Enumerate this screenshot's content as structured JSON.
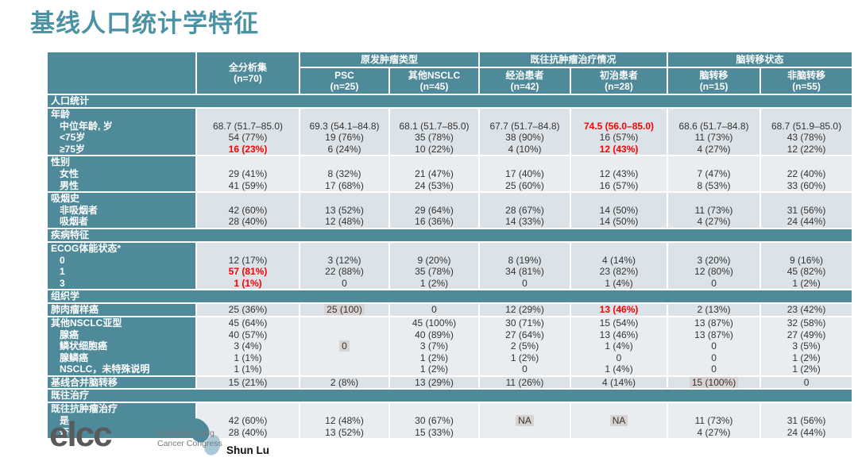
{
  "title": "基线人口统计学特征",
  "colors": {
    "accent_teal": "#4e8a99",
    "title_teal": "#4b92a5",
    "shade_dark": "#dce3e8",
    "shade_light": "#e9edf0",
    "highlight_red": "#fe0000",
    "cell_highlight": "#d8d3d1"
  },
  "table": {
    "col_groups": [
      {
        "label": "原发肿瘤类型",
        "span": 2
      },
      {
        "label": "既往抗肿瘤治疗情况",
        "span": 2
      },
      {
        "label": "脑转移状态",
        "span": 2
      }
    ],
    "columns": [
      {
        "label": "全分析集",
        "n": "(n=70)"
      },
      {
        "label": "PSC",
        "n": "(n=25)"
      },
      {
        "label": "其他NSCLC",
        "n": "(n=45)"
      },
      {
        "label": "经治患者",
        "n": "(n=42)"
      },
      {
        "label": "初治患者",
        "n": "(n=28)"
      },
      {
        "label": "脑转移",
        "n": "(n=15)"
      },
      {
        "label": "非脑转移",
        "n": "(n=55)"
      }
    ],
    "rows": [
      {
        "t": "sec",
        "label": "人口统计"
      },
      {
        "t": "row",
        "lvl": 0,
        "shade": "a",
        "label": "年龄",
        "cells": [
          "",
          "",
          "",
          "",
          "",
          "",
          ""
        ]
      },
      {
        "t": "row",
        "lvl": 1,
        "shade": "a",
        "label": "中位年龄, 岁",
        "cells": [
          "68.7 (51.7–85.0)",
          "69.3 (54.1–84.8)",
          "68.1 (51.7–85.0)",
          "67.7 (51.7–84.8)",
          "74.5 (56.0–85.0)",
          "68.6 (51.7–84.8)",
          "68.7 (51.9–85.0)"
        ],
        "red": [
          4
        ]
      },
      {
        "t": "row",
        "lvl": 1,
        "shade": "a",
        "label": "<75岁",
        "cells": [
          "54 (77%)",
          "19 (76%)",
          "35 (78%)",
          "38 (90%)",
          "16 (57%)",
          "11 (73%)",
          "43 (78%)"
        ]
      },
      {
        "t": "row",
        "lvl": 1,
        "shade": "a",
        "label": "≥75岁",
        "cells": [
          "16 (23%)",
          "6 (24%)",
          "10 (22%)",
          "4 (10%)",
          "12 (43%)",
          "4 (27%)",
          "12 (22%)"
        ],
        "red": [
          0,
          4
        ]
      },
      {
        "t": "row",
        "lvl": 0,
        "shade": "b",
        "label": "性别",
        "cells": [
          "",
          "",
          "",
          "",
          "",
          "",
          ""
        ]
      },
      {
        "t": "row",
        "lvl": 1,
        "shade": "b",
        "label": "女性",
        "cells": [
          "29 (41%)",
          "8 (32%)",
          "21 (47%)",
          "17 (40%)",
          "12 (43%)",
          "7 (47%)",
          "22 (40%)"
        ]
      },
      {
        "t": "row",
        "lvl": 1,
        "shade": "b",
        "label": "男性",
        "cells": [
          "41 (59%)",
          "17 (68%)",
          "24 (53%)",
          "25 (60%)",
          "16 (57%)",
          "8 (53%)",
          "33 (60%)"
        ]
      },
      {
        "t": "row",
        "lvl": 0,
        "shade": "a",
        "label": "吸烟史",
        "cells": [
          "",
          "",
          "",
          "",
          "",
          "",
          ""
        ]
      },
      {
        "t": "row",
        "lvl": 1,
        "shade": "a",
        "label": "非吸烟者",
        "cells": [
          "42 (60%)",
          "13 (52%)",
          "29 (64%)",
          "28 (67%)",
          "14 (50%)",
          "11 (73%)",
          "31 (56%)"
        ]
      },
      {
        "t": "row",
        "lvl": 1,
        "shade": "a",
        "label": "吸烟者",
        "cells": [
          "28 (40%)",
          "12 (48%)",
          "16 (36%)",
          "14 (33%)",
          "14 (50%)",
          "4 (27%)",
          "24 (44%)"
        ]
      },
      {
        "t": "sec",
        "label": "疾病特征"
      },
      {
        "t": "row",
        "lvl": 0,
        "shade": "a",
        "label": "ECOG体能状态*",
        "cells": [
          "",
          "",
          "",
          "",
          "",
          "",
          ""
        ]
      },
      {
        "t": "row",
        "lvl": 1,
        "shade": "a",
        "label": "0",
        "cells": [
          "12 (17%)",
          "3 (12%)",
          "9 (20%)",
          "8 (19%)",
          "4 (14%)",
          "3 (20%)",
          "9 (16%)"
        ]
      },
      {
        "t": "row",
        "lvl": 1,
        "shade": "a",
        "label": "1",
        "cells": [
          "57 (81%)",
          "22 (88%)",
          "35 (78%)",
          "34 (81%)",
          "23 (82%)",
          "12 (80%)",
          "45 (82%)"
        ],
        "red": [
          0
        ]
      },
      {
        "t": "row",
        "lvl": 1,
        "shade": "a",
        "label": "3",
        "cells": [
          "1 (1%)",
          "0",
          "1 (2%)",
          "0",
          "1 (4%)",
          "0",
          "1 (2%)"
        ],
        "red": [
          0
        ]
      },
      {
        "t": "sec",
        "label": "组织学"
      },
      {
        "t": "row",
        "lvl": 0,
        "shade": "a",
        "label": "肺肉瘤样癌",
        "cells": [
          "25 (36%)",
          "25 (100)",
          "0",
          "12 (29%)",
          "13 (46%)",
          "2 (13%)",
          "23 (42%)"
        ],
        "red": [
          4
        ],
        "hl": [
          1
        ]
      },
      {
        "t": "row",
        "lvl": 0,
        "shade": "b",
        "label": "其他NSCLC亚型",
        "cells": [
          "45 (64%)",
          "",
          "45 (100%)",
          "30 (71%)",
          "15 (54%)",
          "13 (87%)",
          "32 (58%)"
        ]
      },
      {
        "t": "row",
        "lvl": 1,
        "shade": "b",
        "label": "腺癌",
        "cells": [
          "40 (57%)",
          "",
          "40 (89%)",
          "27 (64%)",
          "13 (46%)",
          "13 (87%)",
          "27 (49%)"
        ]
      },
      {
        "t": "row",
        "lvl": 1,
        "shade": "b",
        "label": "鳞状细胞癌",
        "cells": [
          "3 (4%)",
          "0",
          "3 (7%)",
          "2 (5%)",
          "1 (4%)",
          "0",
          "3 (5%)"
        ],
        "hl": [
          1
        ]
      },
      {
        "t": "row",
        "lvl": 1,
        "shade": "b",
        "label": "腺鳞癌",
        "cells": [
          "1 (1%)",
          "",
          "1 (2%)",
          "1 (2%)",
          "0",
          "0",
          "1 (2%)"
        ]
      },
      {
        "t": "row",
        "lvl": 1,
        "shade": "b",
        "label": "NSCLC，未特殊说明",
        "cells": [
          "1 (1%)",
          "",
          "1 (2%)",
          "0",
          "1 (4%)",
          "0",
          "1 (2%)"
        ]
      },
      {
        "t": "row",
        "lvl": 0,
        "shade": "a",
        "label": "基线合并脑转移",
        "cells": [
          "15 (21%)",
          "2 (8%)",
          "13 (29%)",
          "11 (26%)",
          "4 (14%)",
          "15 (100%)",
          "0"
        ],
        "hl": [
          5
        ]
      },
      {
        "t": "sec",
        "label": "既往治疗"
      },
      {
        "t": "row",
        "lvl": 0,
        "shade": "b",
        "label": "既往抗肿瘤治疗",
        "cells": [
          "",
          "",
          "",
          "",
          "",
          "",
          ""
        ]
      },
      {
        "t": "row",
        "lvl": 1,
        "shade": "b",
        "label": "是",
        "cells": [
          "42 (60%)",
          "12 (48%)",
          "30 (67%)",
          "NA",
          "NA",
          "11 (73%)",
          "31 (56%)"
        ],
        "hl": [
          3,
          4
        ]
      },
      {
        "t": "row",
        "lvl": 1,
        "shade": "b",
        "label": "否",
        "cells": [
          "28 (40%)",
          "13 (52%)",
          "15 (33%)",
          "",
          "",
          "4 (27%)",
          "24 (44%)"
        ]
      }
    ]
  },
  "footer": {
    "logo_text": "elcc",
    "org_line1": "European Lung",
    "org_line2": "Cancer Congress",
    "presenter": "Shun Lu"
  }
}
